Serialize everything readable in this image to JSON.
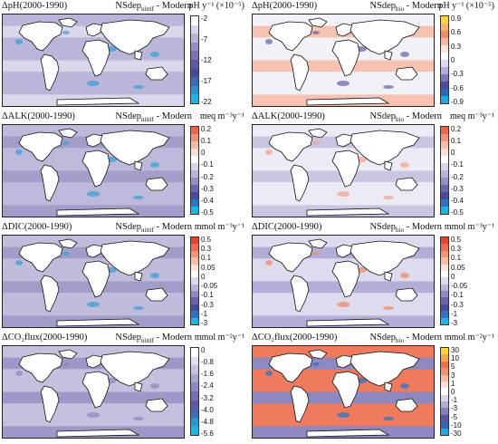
{
  "panels": [
    {
      "id": "p1",
      "title": "ΔpH(2000-1990)",
      "scenario": "NSdep",
      "scenario_sub": "nitrif",
      "scenario_suffix": " - Modern",
      "unit": "pH y⁻¹ (×10⁻⁵)",
      "ticks": [
        "-2",
        "-7",
        "-12",
        "-17",
        "-22"
      ],
      "colors": [
        "#ffffff",
        "#d8d6ea",
        "#b7b4d8",
        "#9590c4",
        "#7a72b0",
        "#5f58a0",
        "#4a4a9a",
        "#3a6ab8",
        "#2e8fd2",
        "#1fb4e6"
      ],
      "field": "#b9b6d9",
      "patch": "#d9d7ea",
      "accent": "#3f9fd8"
    },
    {
      "id": "p2",
      "title": "ΔpH(2000-1990)",
      "scenario": "NSdep",
      "scenario_sub": "bio",
      "scenario_suffix": " - Modern",
      "unit": "pH y⁻¹ (×10⁻⁵)",
      "ticks": [
        "0.9",
        "0.6",
        "0.3",
        "0",
        "-0.3",
        "-0.6",
        "-0.9"
      ],
      "colors": [
        "#ffd43b",
        "#fbb36e",
        "#f08a6a",
        "#f5b7a3",
        "#fbe3d9",
        "#ffffff",
        "#dcdaee",
        "#b0acd6",
        "#7f78b6",
        "#4f4a98",
        "#2f66b8",
        "#1fa8e2"
      ],
      "field": "#f3f1f8",
      "patch": "#f6c2b1",
      "accent": "#6d67ad"
    },
    {
      "id": "p3",
      "title": "ΔALK(2000-1990)",
      "scenario": "NSdep",
      "scenario_sub": "nitrif",
      "scenario_suffix": " - Modern",
      "unit": "meq m⁻³y⁻¹",
      "ticks": [
        "0.2",
        "0.1",
        "0",
        "-0.1",
        "-0.2",
        "-0.3",
        "-0.4",
        "-0.5"
      ],
      "colors": [
        "#e8684f",
        "#f0927b",
        "#f7bba8",
        "#fbe0d6",
        "#ffffff",
        "#d8d6ea",
        "#b7b4d8",
        "#9590c4",
        "#6e67ac",
        "#4a4a9a",
        "#2f74c2",
        "#1fb4e6"
      ],
      "field": "#bcb9da",
      "patch": "#a29ec9",
      "accent": "#3f9fd8"
    },
    {
      "id": "p4",
      "title": "ΔALK(2000-1990)",
      "scenario": "NSdep",
      "scenario_sub": "bio",
      "scenario_suffix": " - Modern",
      "unit": "meq m⁻³y⁻¹",
      "ticks": [
        "0.2",
        "0.1",
        "0",
        "-0.1",
        "-0.2",
        "-0.3",
        "-0.4",
        "-0.5"
      ],
      "colors": [
        "#e8684f",
        "#f0927b",
        "#f7bba8",
        "#fbe0d6",
        "#ffffff",
        "#d8d6ea",
        "#b7b4d8",
        "#9590c4",
        "#6e67ac",
        "#4a4a9a",
        "#2f74c2",
        "#1fb4e6"
      ],
      "field": "#eceaf4",
      "patch": "#c9c6e2",
      "accent": "#f3a48f"
    },
    {
      "id": "p5",
      "title": "ΔDIC(2000-1990)",
      "scenario": "NSdep",
      "scenario_sub": "nitrif",
      "scenario_suffix": " - Modern",
      "unit": "mmol m⁻³y⁻¹",
      "ticks": [
        "0.5",
        "0.3",
        "0.1",
        "0.05",
        "0",
        "-0.05",
        "-0.1",
        "-0.3",
        "-1",
        "-3"
      ],
      "colors": [
        "#e3452f",
        "#ec6b52",
        "#f39477",
        "#f8bda7",
        "#fce3d9",
        "#ffffff",
        "#dcdaee",
        "#b7b4d8",
        "#8f89c1",
        "#6a62aa",
        "#4a4a9a",
        "#2f74c2",
        "#1fb4e6"
      ],
      "field": "#bfbcdc",
      "patch": "#a19dc9",
      "accent": "#3f9fd8"
    },
    {
      "id": "p6",
      "title": "ΔDIC(2000-1990)",
      "scenario": "NSdep",
      "scenario_sub": "bio",
      "scenario_suffix": " - Modern",
      "unit": "mmol m⁻³y⁻¹",
      "ticks": [
        "0.5",
        "0.3",
        "0.1",
        "0.05",
        "0",
        "-0.05",
        "-0.1",
        "-0.3",
        "-1",
        "-3"
      ],
      "colors": [
        "#e3452f",
        "#ec6b52",
        "#f39477",
        "#f8bda7",
        "#fce3d9",
        "#ffffff",
        "#dcdaee",
        "#b7b4d8",
        "#8f89c1",
        "#6a62aa",
        "#4a4a9a",
        "#2f74c2",
        "#1fb4e6"
      ],
      "field": "#dddbee",
      "patch": "#b2aed7",
      "accent": "#f08a6a"
    },
    {
      "id": "p7",
      "title": "ΔCO₂flux(2000-1990)",
      "scenario": "NSdep",
      "scenario_sub": "nitrif",
      "scenario_suffix": " - Modern",
      "unit": "mmol m⁻²y⁻¹",
      "ticks": [
        "0",
        "-0.8",
        "-1.6",
        "-2.4",
        "-3.2",
        "-4.0",
        "-4.8",
        "-5.6"
      ],
      "colors": [
        "#ffffff",
        "#e2e0f0",
        "#c6c3e1",
        "#aaa6d2",
        "#8f89c1",
        "#7670b2",
        "#5d58a2",
        "#3f6bb6",
        "#2e92d6",
        "#1fb4e6"
      ],
      "field": "#c4c1df",
      "patch": "#9c98c7",
      "accent": "#8d88c0"
    },
    {
      "id": "p8",
      "title": "ΔCO₂flux(2000-1990)",
      "scenario": "NSdep",
      "scenario_sub": "bio",
      "scenario_suffix": " - Modern",
      "unit": "mmol m⁻²y⁻¹",
      "ticks": [
        "30",
        "10",
        "5",
        "3",
        "1",
        "0",
        "-1",
        "-3",
        "-5",
        "-10",
        "-30"
      ],
      "colors": [
        "#ffd43b",
        "#f5a84e",
        "#ee6f4c",
        "#f08f72",
        "#f7b9a3",
        "#fce0d5",
        "#ffffff",
        "#d9d7ec",
        "#b1add6",
        "#847ebb",
        "#5b55a0",
        "#3467b5",
        "#1fa8e2"
      ],
      "field": "#ef7a5e",
      "patch": "#8e88c1",
      "accent": "#2f74c2"
    }
  ]
}
